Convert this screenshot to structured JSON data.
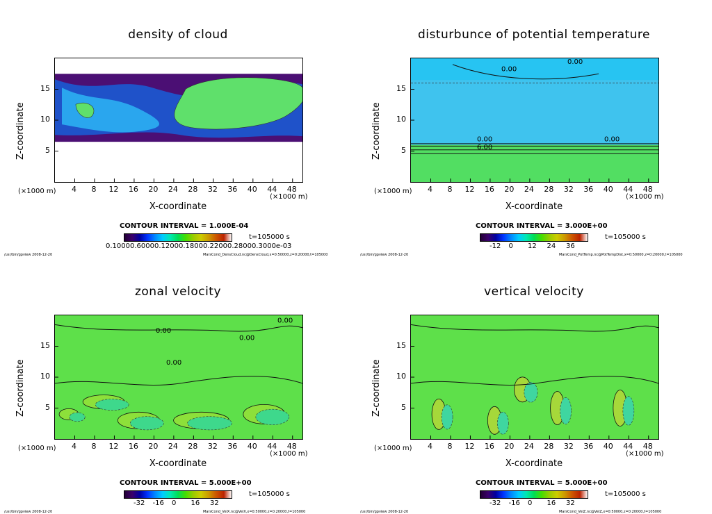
{
  "common": {
    "z_axis_title": "Z-coordinate",
    "x_axis_title": "X-coordinate",
    "unit_label": "(×1000 m)",
    "time_label": "t=105000 s",
    "footer_left": "/usr/bin/gpview   2008-12-20"
  },
  "chart_data": [
    {
      "type": "heatmap",
      "title": "density of cloud",
      "xlabel": "X-coordinate",
      "ylabel": "Z-coordinate",
      "x_ticks": [
        "4",
        "8",
        "12",
        "16",
        "20",
        "24",
        "28",
        "32",
        "36",
        "40",
        "44",
        "48"
      ],
      "y_ticks": [
        "5",
        "10",
        "15"
      ],
      "xlim": [
        0,
        50
      ],
      "ylim": [
        0,
        20
      ],
      "contour_interval": "CONTOUR INTERVAL = 1.000E-04",
      "colorbar_labels": [
        "0.10000.60000.12000.18000.22000.28000.3000e-03"
      ],
      "footer": "MarsCond_DensCloud.nc@DensCloud,x=0:50000,z=0:20000,t=105000",
      "cloud_layer_z": [
        6.5,
        17.5
      ],
      "colors": [
        "#4b0f74",
        "#1f52c9",
        "#2aa6ee",
        "#5fe06b"
      ]
    },
    {
      "type": "heatmap",
      "title": "disturbunce of potential temperature",
      "xlabel": "X-coordinate",
      "ylabel": "Z-coordinate",
      "x_ticks": [
        "4",
        "8",
        "12",
        "16",
        "20",
        "24",
        "28",
        "32",
        "36",
        "40",
        "44",
        "48"
      ],
      "y_ticks": [
        "5",
        "10",
        "15"
      ],
      "xlim": [
        0,
        50
      ],
      "ylim": [
        0,
        20
      ],
      "contour_interval": "CONTOUR INTERVAL = 3.000E+00",
      "colorbar_labels": [
        "-12",
        "0",
        "12",
        "24",
        "36"
      ],
      "footer": "MarsCond_PotTemp.nc@PotTempDist,x=0:50000,z=0:20000,t=105000",
      "contour_labels": [
        "0.00",
        "0.00",
        "0.00",
        "0.00",
        "6.00"
      ],
      "colors": [
        "#3fc3ee",
        "#27c4f2",
        "#52de62"
      ]
    },
    {
      "type": "heatmap",
      "title": "zonal velocity",
      "xlabel": "X-coordinate",
      "ylabel": "Z-coordinate",
      "x_ticks": [
        "4",
        "8",
        "12",
        "16",
        "20",
        "24",
        "28",
        "32",
        "36",
        "40",
        "44",
        "48"
      ],
      "y_ticks": [
        "5",
        "10",
        "15"
      ],
      "xlim": [
        0,
        50
      ],
      "ylim": [
        0,
        20
      ],
      "contour_interval": "CONTOUR INTERVAL = 5.000E+00",
      "colorbar_labels": [
        "-32",
        "-16",
        "0",
        "16",
        "32"
      ],
      "footer": "MarsCond_VelX.nc@VelX,x=0:50000,z=0:20000,t=105000",
      "contour_labels": [
        "0.00",
        "0.00",
        "0.00",
        "0.00"
      ],
      "colors": [
        "#5ee04a",
        "#8de03a",
        "#3ed88c"
      ]
    },
    {
      "type": "heatmap",
      "title": "vertical velocity",
      "xlabel": "X-coordinate",
      "ylabel": "Z-coordinate",
      "x_ticks": [
        "4",
        "8",
        "12",
        "16",
        "20",
        "24",
        "28",
        "32",
        "36",
        "40",
        "44",
        "48"
      ],
      "y_ticks": [
        "5",
        "10",
        "15"
      ],
      "xlim": [
        0,
        50
      ],
      "ylim": [
        0,
        20
      ],
      "contour_interval": "CONTOUR INTERVAL = 5.000E+00",
      "colorbar_labels": [
        "-32",
        "-16",
        "0",
        "16",
        "32"
      ],
      "footer": "MarsCond_VelZ.nc@VelZ,x=0:50000,z=0:20000,t=105000",
      "colors": [
        "#5ee04a",
        "#a6d83a",
        "#3fd6a0"
      ]
    }
  ]
}
